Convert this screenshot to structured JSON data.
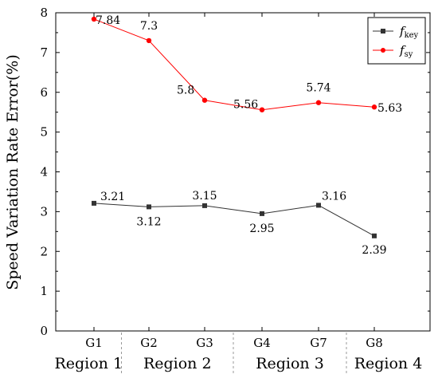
{
  "chart_data": {
    "type": "line",
    "categories": [
      "G1",
      "G2",
      "G3",
      "G4",
      "G7",
      "G8"
    ],
    "series": [
      {
        "name": "f_key",
        "legend_main": "f",
        "legend_sub": "key",
        "color": "#333333",
        "marker": "square",
        "values": [
          3.21,
          3.12,
          3.15,
          2.95,
          3.16,
          2.39
        ],
        "labels": [
          "3.21",
          "3.12",
          "3.15",
          "2.95",
          "3.16",
          "2.39"
        ]
      },
      {
        "name": "f_sy",
        "legend_main": "f",
        "legend_sub": "sy",
        "color": "#ff0000",
        "marker": "circle",
        "values": [
          7.84,
          7.3,
          5.8,
          5.56,
          5.74,
          5.63
        ],
        "labels": [
          "7.84",
          "7.3",
          "5.8",
          "5.56",
          "5.74",
          "5.63"
        ]
      }
    ],
    "ylabel": "Speed Variation Rate Error(%)",
    "xlabel": "",
    "ylim": [
      0,
      8
    ],
    "yticks": [
      0,
      1,
      2,
      3,
      4,
      5,
      6,
      7,
      8
    ],
    "grid": false,
    "legend_position": "top-right",
    "regions": [
      {
        "label": "Region 1",
        "categories": [
          "G1"
        ]
      },
      {
        "label": "Region 2",
        "categories": [
          "G2",
          "G3"
        ]
      },
      {
        "label": "Region 3",
        "categories": [
          "G4",
          "G7"
        ]
      },
      {
        "label": "Region 4",
        "categories": [
          "G8"
        ]
      }
    ]
  }
}
